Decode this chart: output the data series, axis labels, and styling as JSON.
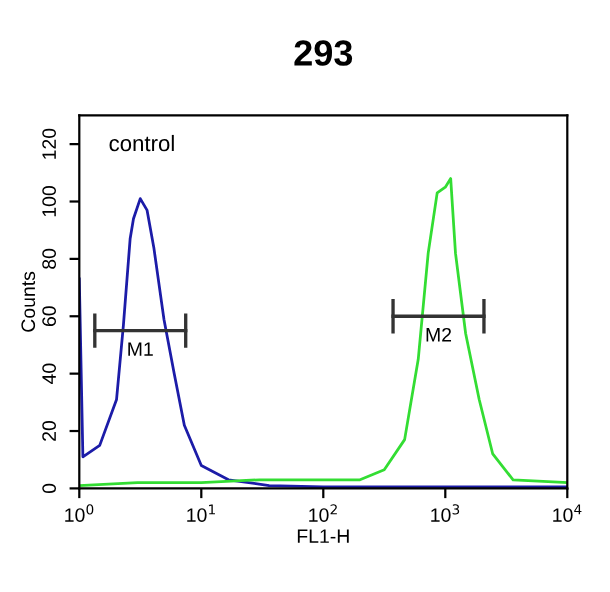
{
  "chart_data": {
    "type": "line",
    "title": "293",
    "xlabel": "FL1-H",
    "ylabel": "Counts",
    "log": "x",
    "xlim": [
      1,
      10000
    ],
    "xticks": [
      {
        "value": 1,
        "label": "10$^{0}$"
      },
      {
        "value": 10,
        "label": "10$^{1}$"
      },
      {
        "value": 100,
        "label": "10$^{2}$"
      },
      {
        "value": 1000,
        "label": "10$^{3}$"
      },
      {
        "value": 10000,
        "label": "10$^{4}$"
      }
    ],
    "ylim": [
      0,
      130
    ],
    "yticks": [
      0,
      20,
      40,
      60,
      80,
      100,
      120
    ],
    "grid": false,
    "legend": false,
    "marker": "none",
    "line_style": "solid",
    "series": [
      {
        "color": "#1c1ca8",
        "x": [
          1,
          1.07,
          1.47,
          2.02,
          2.3,
          2.61,
          2.78,
          3.16,
          3.59,
          4.08,
          4.94,
          6.0,
          7.26,
          10,
          16.7,
          36,
          100,
          1000,
          10000
        ],
        "values": [
          73,
          11,
          15,
          31,
          57,
          87,
          94,
          101,
          97,
          84,
          59,
          40,
          22,
          8,
          3,
          1,
          0.5,
          0.5,
          0.5
        ]
      },
      {
        "color": "#33dd33",
        "x": [
          1,
          3,
          10,
          30,
          100,
          200,
          316,
          464,
          600,
          724,
          858,
          1000,
          1107,
          1212,
          1468,
          1896,
          2448,
          3594,
          10000
        ],
        "values": [
          1,
          2,
          2,
          3,
          3,
          3,
          6.5,
          17,
          45,
          82,
          103,
          105,
          108,
          82,
          54,
          31,
          12,
          3,
          2
        ]
      },
      {
        "name": "M1",
        "color": "#333333",
        "x": [
          1.34,
          7.45
        ],
        "values": [
          55,
          55
        ],
        "errors": [
          6,
          6
        ]
      },
      {
        "name": "M2",
        "color": "#333333",
        "x": [
          373,
          2074
        ],
        "values": [
          60,
          60
        ],
        "errors": [
          6,
          6
        ]
      }
    ],
    "annotations": [
      "control"
    ]
  }
}
